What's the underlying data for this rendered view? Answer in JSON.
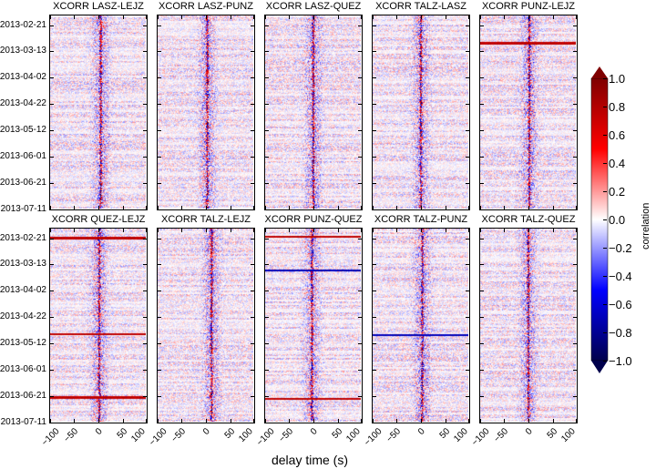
{
  "chart_data": {
    "type": "heatmap",
    "layout": "2 rows x 5 columns",
    "xlabel": "delay time (s)",
    "xlim": [
      -100,
      100
    ],
    "xticks": [
      "-100",
      "-50",
      "0",
      "50",
      "100"
    ],
    "ylim": [
      "2013-02-13",
      "2013-07-12"
    ],
    "yticks": [
      "2013-02-21",
      "2013-03-13",
      "2013-04-02",
      "2013-04-22",
      "2013-05-12",
      "2013-06-01",
      "2013-06-21",
      "2013-07-11"
    ],
    "colorbar": {
      "label": "correlation",
      "colormap": "seismic",
      "range": [
        -1.0,
        1.0
      ],
      "ticks": [
        "1.0",
        "0.8",
        "0.6",
        "0.4",
        "0.2",
        "0.0",
        "−0.2",
        "−0.4",
        "−0.6",
        "−0.8",
        "−1.0"
      ],
      "extend": "both",
      "colors": {
        "min": "#00004c",
        "neg": "#0000ff",
        "zero": "#ffffff",
        "pos": "#ff0000",
        "max": "#7f0000"
      }
    },
    "panels": [
      {
        "title": "XCORR LASZ-LEJZ",
        "peak_lag_s": 5,
        "strong_rows": []
      },
      {
        "title": "XCORR LASZ-PUNZ",
        "peak_lag_s": 3,
        "strong_rows": []
      },
      {
        "title": "XCORR LASZ-QUEZ",
        "peak_lag_s": 0,
        "strong_rows": []
      },
      {
        "title": "XCORR TALZ-LASZ",
        "peak_lag_s": 0,
        "strong_rows": []
      },
      {
        "title": "XCORR PUNZ-LEJZ",
        "peak_lag_s": 2,
        "strong_rows": [
          {
            "date": "2013-03-06",
            "sign": "positive"
          }
        ]
      },
      {
        "title": "XCORR QUEZ-LEJZ",
        "peak_lag_s": 2,
        "strong_rows": [
          {
            "date": "2013-02-20",
            "sign": "positive"
          },
          {
            "date": "2013-05-05",
            "sign": "positive"
          },
          {
            "date": "2013-06-23",
            "sign": "positive"
          }
        ]
      },
      {
        "title": "XCORR TALZ-LEJZ",
        "peak_lag_s": 12,
        "strong_rows": []
      },
      {
        "title": "XCORR PUNZ-QUEZ",
        "peak_lag_s": -3,
        "strong_rows": [
          {
            "date": "2013-02-19",
            "sign": "positive"
          },
          {
            "date": "2013-03-17",
            "sign": "negative"
          },
          {
            "date": "2013-06-24",
            "sign": "positive"
          }
        ]
      },
      {
        "title": "XCORR TALZ-PUNZ",
        "peak_lag_s": 3,
        "strong_rows": [
          {
            "date": "2013-05-06",
            "sign": "negative"
          }
        ]
      },
      {
        "title": "XCORR TALZ-QUEZ",
        "peak_lag_s": 0,
        "strong_rows": []
      }
    ]
  }
}
